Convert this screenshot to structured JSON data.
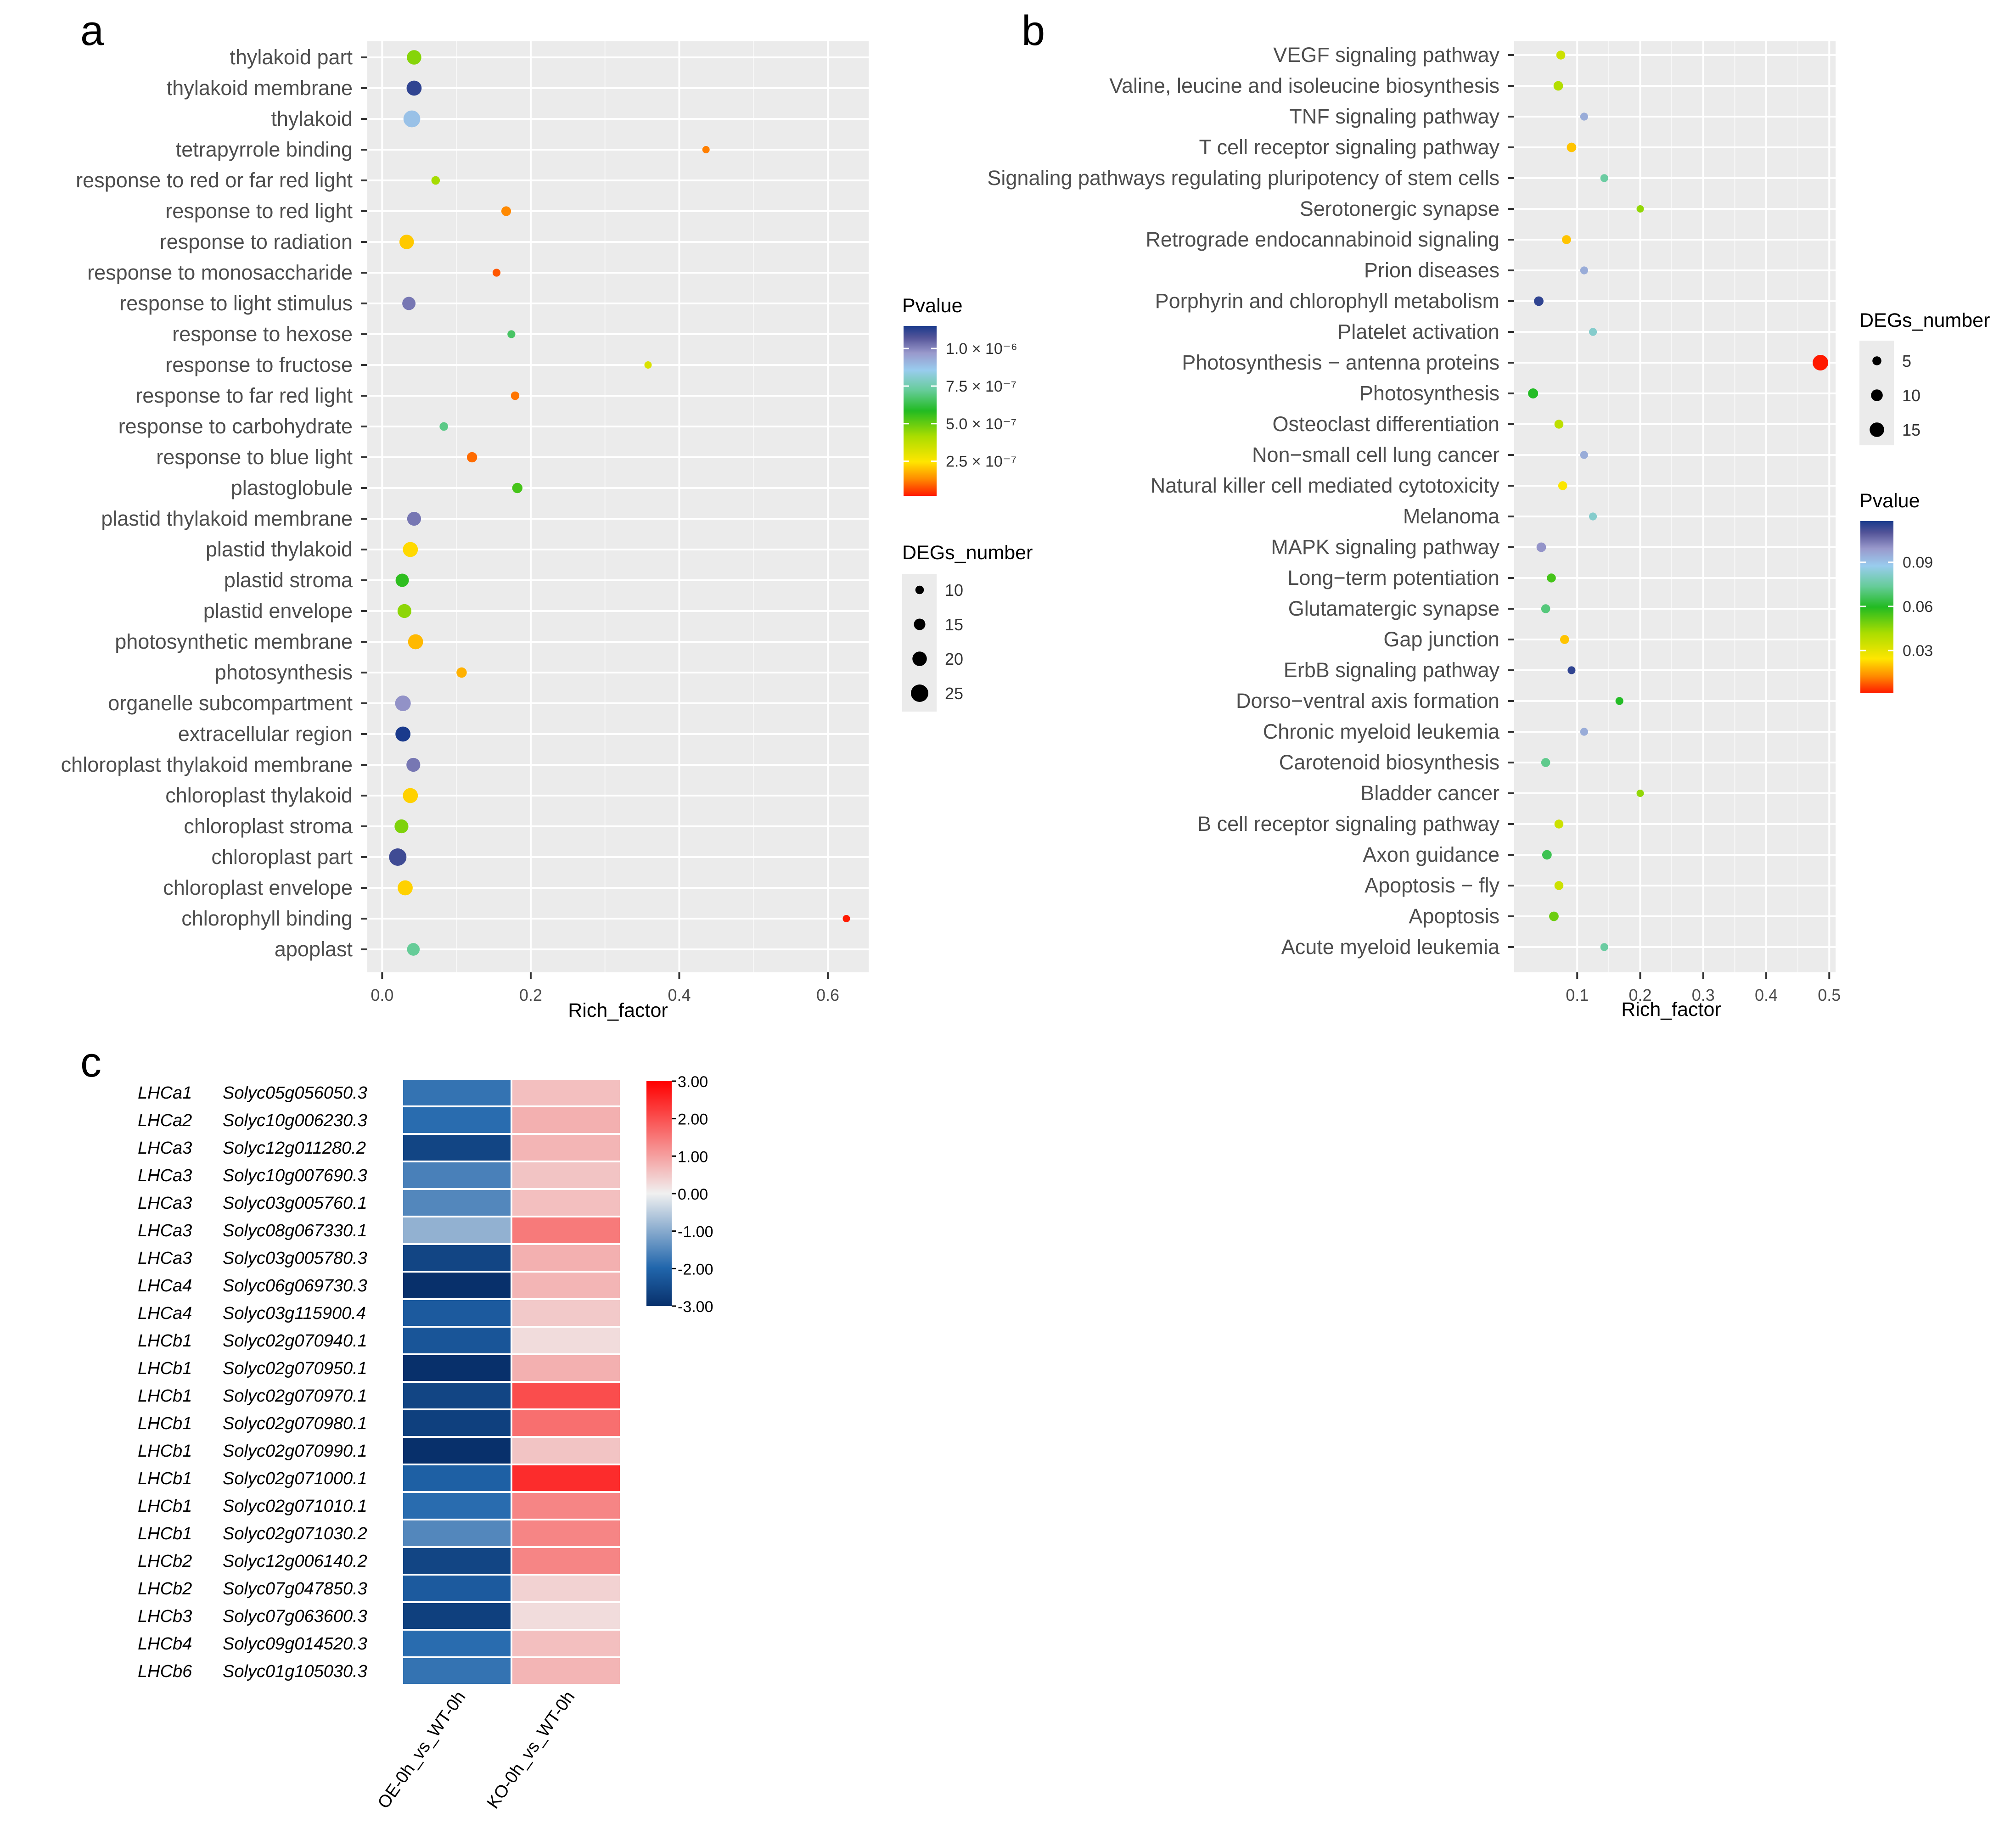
{
  "panel_letters": [
    "a",
    "b",
    "c"
  ],
  "chart_data": [
    {
      "panel": "a",
      "type": "scatter",
      "xlabel": "Rich_factor",
      "xlim": [
        -0.02,
        0.655
      ],
      "xticks": [
        "0.0",
        "0.2",
        "0.4",
        "0.6"
      ],
      "xtick_values": [
        0,
        0.2,
        0.4,
        0.6
      ],
      "categories": [
        "thylakoid part",
        "thylakoid membrane",
        "thylakoid",
        "tetrapyrrole binding",
        "response to red or far red light",
        "response to red light",
        "response to radiation",
        "response to monosaccharide",
        "response to light stimulus",
        "response to hexose",
        "response to fructose",
        "response to far red light",
        "response to carbohydrate",
        "response to blue light",
        "plastoglobule",
        "plastid thylakoid membrane",
        "plastid thylakoid",
        "plastid stroma",
        "plastid envelope",
        "photosynthetic membrane",
        "photosynthesis",
        "organelle subcompartment",
        "extracellular region",
        "chloroplast thylakoid membrane",
        "chloroplast thylakoid",
        "chloroplast stroma",
        "chloroplast part",
        "chloroplast envelope",
        "chlorophyll binding",
        "apoplast"
      ],
      "rich_factor": [
        0.043,
        0.043,
        0.04,
        0.436,
        0.072,
        0.167,
        0.033,
        0.154,
        0.036,
        0.174,
        0.358,
        0.179,
        0.083,
        0.121,
        0.182,
        0.043,
        0.038,
        0.027,
        0.03,
        0.045,
        0.107,
        0.028,
        0.028,
        0.042,
        0.038,
        0.026,
        0.021,
        0.031,
        0.625,
        0.042
      ],
      "degs_number": [
        20,
        21,
        24,
        8,
        10,
        12,
        20,
        9,
        18,
        9,
        8,
        10,
        10,
        13,
        13,
        19,
        21,
        18,
        19,
        21,
        13,
        22,
        21,
        19,
        21,
        19,
        25,
        21,
        8,
        17
      ],
      "pvalue": [
        4.6e-07,
        1.12e-06,
        8.8e-07,
        1.2e-07,
        4.2e-07,
        1.3e-07,
        2.1e-07,
        8e-08,
        1.02e-06,
        6.6e-07,
        3.2e-07,
        1.1e-07,
        7e-07,
        1e-07,
        5.4e-07,
        1.02e-06,
        2.3e-07,
        5.7e-07,
        4.5e-07,
        1.9e-07,
        1.8e-07,
        9.8e-07,
        1.15e-06,
        1.02e-06,
        2.2e-07,
        4.7e-07,
        1.1e-06,
        2.2e-07,
        2e-08,
        7.2e-07
      ],
      "color_legend_title": "Pvalue",
      "color_legend_ticks": [
        "1.0 × 10⁻⁶",
        "7.5 × 10⁻⁷",
        "5.0 × 10⁻⁷",
        "2.5 × 10⁻⁷"
      ],
      "color_legend_tick_values": [
        1e-06,
        7.5e-07,
        5e-07,
        2.5e-07
      ],
      "color_range": [
        2e-08,
        1.15e-06
      ],
      "size_legend_title": "DEGs_number",
      "size_legend_labels": [
        "10",
        "15",
        "20",
        "25"
      ],
      "size_legend_values": [
        10,
        15,
        20,
        25
      ],
      "size_range": [
        8,
        25
      ]
    },
    {
      "panel": "b",
      "type": "scatter",
      "xlabel": "Rich_factor",
      "xlim": [
        0,
        0.51
      ],
      "xticks": [
        "0.1",
        "0.2",
        "0.3",
        "0.4",
        "0.5"
      ],
      "xtick_values": [
        0.1,
        0.2,
        0.3,
        0.4,
        0.5
      ],
      "categories": [
        "VEGF signaling pathway",
        "Valine, leucine and isoleucine biosynthesis",
        "TNF signaling pathway",
        "T cell receptor signaling pathway",
        "Signaling pathways regulating pluripotency of stem cells",
        "Serotonergic synapse",
        "Retrograde endocannabinoid signaling",
        "Prion diseases",
        "Porphyrin and chlorophyll metabolism",
        "Platelet activation",
        "Photosynthesis − antenna proteins",
        "Photosynthesis",
        "Osteoclast differentiation",
        "Non−small cell lung cancer",
        "Natural killer cell mediated cytotoxicity",
        "Melanoma",
        "MAPK signaling pathway",
        "Long−term potentiation",
        "Glutamatergic synapse",
        "Gap junction",
        "ErbB signaling pathway",
        "Dorso−ventral axis formation",
        "Chronic myeloid leukemia",
        "Carotenoid biosynthesis",
        "Bladder cancer",
        "B cell receptor signaling pathway",
        "Axon guidance",
        "Apoptosis − fly",
        "Apoptosis",
        "Acute myeloid leukemia"
      ],
      "rich_factor": [
        0.074,
        0.07,
        0.111,
        0.091,
        0.143,
        0.2,
        0.083,
        0.111,
        0.039,
        0.125,
        0.486,
        0.03,
        0.071,
        0.111,
        0.077,
        0.125,
        0.043,
        0.059,
        0.05,
        0.08,
        0.091,
        0.167,
        0.111,
        0.05,
        0.2,
        0.071,
        0.052,
        0.071,
        0.063,
        0.143
      ],
      "degs_number": [
        5,
        6,
        3,
        6,
        3,
        2,
        5,
        3,
        6,
        3,
        17,
        7,
        5,
        3,
        5,
        3,
        6,
        5,
        5,
        5,
        3,
        3,
        3,
        5,
        2,
        5,
        6,
        5,
        6,
        3
      ],
      "pvalue": [
        0.035,
        0.04,
        0.095,
        0.02,
        0.075,
        0.045,
        0.02,
        0.095,
        0.115,
        0.082,
        0.001,
        0.06,
        0.038,
        0.095,
        0.025,
        0.082,
        0.1,
        0.055,
        0.07,
        0.02,
        0.115,
        0.06,
        0.095,
        0.072,
        0.045,
        0.035,
        0.065,
        0.035,
        0.05,
        0.075
      ],
      "color_legend_title": "Pvalue",
      "color_legend_ticks": [
        "0.09",
        "0.06",
        "0.03"
      ],
      "color_legend_tick_values": [
        0.09,
        0.06,
        0.03
      ],
      "color_range": [
        0.001,
        0.118
      ],
      "size_legend_title": "DEGs_number",
      "size_legend_labels": [
        "5",
        "10",
        "15"
      ],
      "size_legend_values": [
        5,
        10,
        15
      ],
      "size_range": [
        2,
        17
      ]
    },
    {
      "panel": "c",
      "type": "heatmap",
      "columns": [
        "OE-0h_vs_WT-0h",
        "KO-0h_vs_WT-0h"
      ],
      "rows": [
        {
          "gene": "LHCa1",
          "id": "Solyc05g056050.3",
          "values": [
            -1.8,
            1.0
          ]
        },
        {
          "gene": "LHCa2",
          "id": "Solyc10g006230.3",
          "values": [
            -1.9,
            1.3
          ]
        },
        {
          "gene": "LHCa3",
          "id": "Solyc12g011280.2",
          "values": [
            -2.6,
            1.2
          ]
        },
        {
          "gene": "LHCa3",
          "id": "Solyc10g007690.3",
          "values": [
            -1.6,
            0.9
          ]
        },
        {
          "gene": "LHCa3",
          "id": "Solyc03g005760.1",
          "values": [
            -1.5,
            1.0
          ]
        },
        {
          "gene": "LHCa3",
          "id": "Solyc08g067330.1",
          "values": [
            -0.9,
            1.9
          ]
        },
        {
          "gene": "LHCa3",
          "id": "Solyc03g005780.3",
          "values": [
            -2.6,
            1.3
          ]
        },
        {
          "gene": "LHCa4",
          "id": "Solyc06g069730.3",
          "values": [
            -3.0,
            1.2
          ]
        },
        {
          "gene": "LHCa4",
          "id": "Solyc03g115900.4",
          "values": [
            -2.2,
            0.8
          ]
        },
        {
          "gene": "LHCb1",
          "id": "Solyc02g070940.1",
          "values": [
            -2.3,
            0.4
          ]
        },
        {
          "gene": "LHCb1",
          "id": "Solyc02g070950.1",
          "values": [
            -3.0,
            1.3
          ]
        },
        {
          "gene": "LHCb1",
          "id": "Solyc02g070970.1",
          "values": [
            -2.6,
            2.3
          ]
        },
        {
          "gene": "LHCb1",
          "id": "Solyc02g070980.1",
          "values": [
            -2.7,
            2.0
          ]
        },
        {
          "gene": "LHCb1",
          "id": "Solyc02g070990.1",
          "values": [
            -3.0,
            0.9
          ]
        },
        {
          "gene": "LHCb1",
          "id": "Solyc02g071000.1",
          "values": [
            -2.1,
            2.6
          ]
        },
        {
          "gene": "LHCb1",
          "id": "Solyc02g071010.1",
          "values": [
            -1.9,
            1.8
          ]
        },
        {
          "gene": "LHCb1",
          "id": "Solyc02g071030.2",
          "values": [
            -1.5,
            1.8
          ]
        },
        {
          "gene": "LHCb2",
          "id": "Solyc12g006140.2",
          "values": [
            -2.6,
            1.8
          ]
        },
        {
          "gene": "LHCb2",
          "id": "Solyc07g047850.3",
          "values": [
            -2.2,
            0.6
          ]
        },
        {
          "gene": "LHCb3",
          "id": "Solyc07g063600.3",
          "values": [
            -2.7,
            0.4
          ]
        },
        {
          "gene": "LHCb4",
          "id": "Solyc09g014520.3",
          "values": [
            -1.9,
            1.0
          ]
        },
        {
          "gene": "LHCb6",
          "id": "Solyc01g105030.3",
          "values": [
            -1.8,
            1.2
          ]
        }
      ],
      "scale_ticks": [
        "3.00",
        "2.00",
        "1.00",
        "0.00",
        "-1.00",
        "-2.00",
        "-3.00"
      ],
      "scale_tick_values": [
        3,
        2,
        1,
        0,
        -1,
        -2,
        -3
      ],
      "scale_range": [
        -3,
        3
      ],
      "scale_colors": {
        "low_end": "#08306b",
        "low": "#2166ac",
        "mid": "#f0f0f0",
        "high": "#ff0000"
      }
    }
  ],
  "colors": {
    "panel_bg": "#ebebeb",
    "gridline": "#ffffff",
    "dot_gradient_a": [
      "#ff1a00",
      "#ff8c00",
      "#ffe600",
      "#aadd00",
      "#22bb22",
      "#66cc99",
      "#99ccee",
      "#9999cc",
      "#555599",
      "#1a3a8c"
    ],
    "dot_gradient_b": [
      "#ff1a00",
      "#ff8c00",
      "#ffe600",
      "#aadd00",
      "#22bb22",
      "#66cc99",
      "#99ccee",
      "#9999cc",
      "#555599",
      "#1a3a8c"
    ]
  }
}
